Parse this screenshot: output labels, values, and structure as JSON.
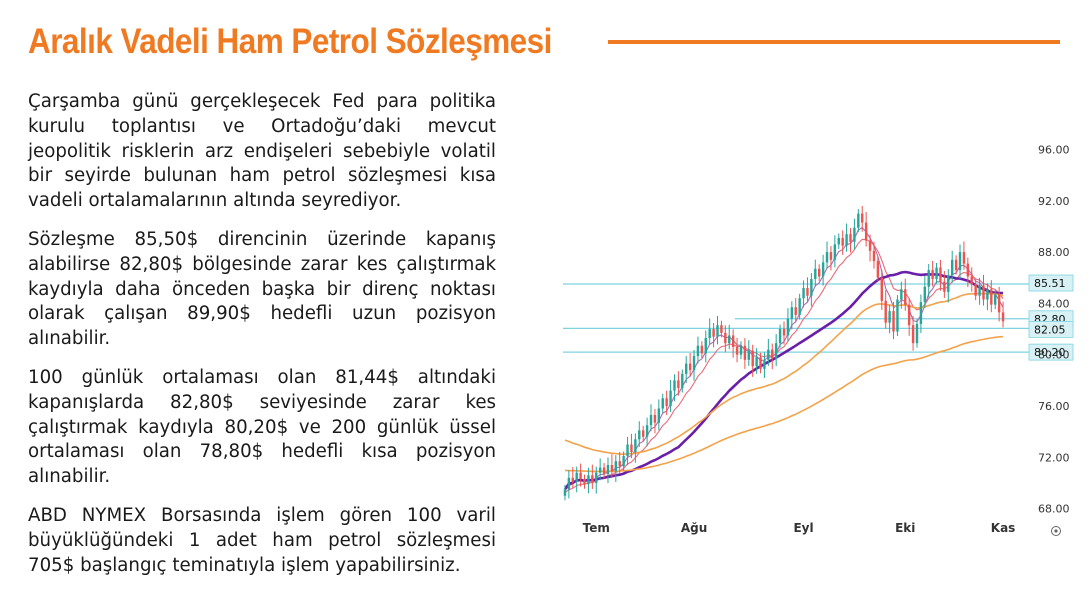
{
  "page_title": "Aralık Vadeli Ham Petrol Sözleşmesi",
  "paragraphs": [
    "Çarşamba günü gerçekleşecek Fed para politika kurulu toplantısı ve Ortadoğu’daki mevcut jeopolitik risklerin arz endişeleri sebebiyle volatil bir seyirde bulunan ham petrol sözleşmesi kısa vadeli ortalamalarının altında seyrediyor.",
    "Sözleşme 85,50$ direncinin üzerinde kapanış alabilirse 82,80$ bölgesinde zarar kes çalıştırmak kaydıyla daha önceden başka bir direnç noktası olarak çalışan 89,90$ hedefli uzun pozisyon alınabilir.",
    "100 günlük ortalaması olan 81,44$ altındaki kapanışlarda 82,80$ seviyesinde zarar kes çalıştırmak kaydıyla 80,20$ ve 200 günlük üssel ortalaması olan 78,80$ hedefli kısa pozisyon alınabilir.",
    "ABD NYMEX Borsasında işlem gören 100 varil büyüklüğündeki 1 adet ham petrol sözleşmesi 705$ başlangıç teminatıyla işlem yapabilirsiniz."
  ],
  "colors": {
    "accent": "#f07a22",
    "up": "#26a69a",
    "down": "#ef5350",
    "level_line": "#7fd3e0"
  },
  "chart_data": {
    "type": "candlestick",
    "y_ticks": [
      "96.00",
      "92.00",
      "88.00",
      "84.00",
      "80.00",
      "76.00",
      "72.00",
      "68.00"
    ],
    "y_tick_values": [
      96,
      92,
      88,
      84,
      80,
      76,
      72,
      68
    ],
    "ylim": [
      67.5,
      98.3
    ],
    "x_ticks": [
      "Tem",
      "Ağu",
      "Eyl",
      "Eki",
      "Kas"
    ],
    "x_tick_index": [
      8,
      33,
      61,
      87,
      112
    ],
    "price_levels": [
      {
        "label": "85.51",
        "value": 85.51
      },
      {
        "label": "82.80",
        "value": 82.8
      },
      {
        "label": "82.05",
        "value": 82.05
      },
      {
        "label": "80.20",
        "value": 80.2
      }
    ],
    "closes": [
      69.5,
      70.4,
      70.1,
      70.8,
      70.3,
      69.9,
      70.6,
      70.0,
      70.8,
      71.2,
      70.7,
      71.4,
      70.9,
      71.7,
      71.3,
      72.1,
      73.0,
      72.4,
      73.4,
      74.1,
      73.6,
      74.5,
      75.3,
      74.7,
      75.8,
      76.6,
      76.0,
      77.2,
      78.0,
      77.4,
      78.5,
      79.3,
      78.8,
      79.9,
      80.7,
      80.1,
      81.3,
      82.0,
      81.4,
      82.3,
      81.7,
      80.9,
      81.5,
      80.6,
      80.0,
      80.7,
      79.6,
      80.3,
      79.1,
      79.8,
      78.9,
      79.6,
      80.4,
      79.7,
      80.9,
      82.0,
      81.5,
      82.8,
      83.7,
      83.1,
      84.4,
      85.2,
      84.6,
      85.9,
      86.7,
      86.1,
      87.2,
      88.0,
      87.4,
      88.6,
      89.1,
      88.5,
      89.4,
      88.8,
      89.9,
      91.0,
      90.3,
      88.9,
      88.1,
      87.3,
      86.0,
      84.2,
      82.5,
      83.4,
      81.8,
      84.3,
      85.1,
      83.9,
      82.3,
      80.9,
      82.4,
      84.1,
      85.3,
      86.6,
      85.9,
      86.8,
      85.7,
      84.9,
      86.2,
      87.4,
      86.6,
      88.0,
      87.1,
      86.1,
      85.5,
      84.6,
      85.4,
      84.3,
      85.1,
      83.9,
      84.7,
      83.3,
      82.6
    ]
  }
}
